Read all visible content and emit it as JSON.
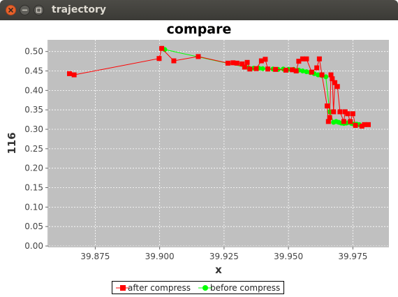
{
  "window": {
    "title": "trajectory"
  },
  "chart_data": {
    "type": "line",
    "title": "compare",
    "xlabel": "x",
    "ylabel": "116",
    "xlim": [
      39.857,
      39.989
    ],
    "ylim": [
      0.0,
      0.53
    ],
    "xticks": [
      39.875,
      39.9,
      39.925,
      39.95,
      39.975
    ],
    "xtick_labels": [
      "39.875",
      "39.900",
      "39.925",
      "39.950",
      "39.975"
    ],
    "yticks": [
      0.0,
      0.05,
      0.1,
      0.15,
      0.2,
      0.25,
      0.3,
      0.35,
      0.4,
      0.45,
      0.5
    ],
    "ytick_labels": [
      "0.00",
      "0.05",
      "0.10",
      "0.15",
      "0.20",
      "0.25",
      "0.30",
      "0.35",
      "0.40",
      "0.45",
      "0.50"
    ],
    "grid": true,
    "legend_position": "bottom-center",
    "background_color": "#c0c0c0",
    "series": [
      {
        "name": "after compress",
        "color": "#ff0000",
        "marker": "square",
        "x": [
          39.865,
          39.8668,
          39.8998,
          39.9008,
          39.9055,
          39.915,
          39.9265,
          39.9285,
          39.93,
          39.932,
          39.933,
          39.934,
          39.935,
          39.9375,
          39.9395,
          39.941,
          39.942,
          39.945,
          39.949,
          39.9515,
          39.953,
          39.954,
          39.9555,
          39.957,
          39.959,
          39.961,
          39.962,
          39.963,
          39.965,
          39.9655,
          39.966,
          39.9665,
          39.967,
          39.9675,
          39.968,
          39.969,
          39.97,
          39.9715,
          39.972,
          39.973,
          39.974,
          39.975,
          39.976,
          39.9785,
          39.9795,
          39.981
        ],
        "y": [
          0.443,
          0.44,
          0.482,
          0.508,
          0.476,
          0.487,
          0.47,
          0.471,
          0.47,
          0.468,
          0.46,
          0.472,
          0.455,
          0.456,
          0.476,
          0.48,
          0.455,
          0.454,
          0.452,
          0.453,
          0.45,
          0.475,
          0.481,
          0.481,
          0.447,
          0.458,
          0.481,
          0.44,
          0.36,
          0.32,
          0.33,
          0.44,
          0.43,
          0.345,
          0.42,
          0.41,
          0.345,
          0.32,
          0.345,
          0.34,
          0.32,
          0.34,
          0.31,
          0.308,
          0.312,
          0.312
        ]
      },
      {
        "name": "before compress",
        "color": "#00ff00",
        "marker": "circle",
        "x": [
          39.9008,
          39.902,
          39.9345,
          39.9365,
          39.9385,
          39.94,
          39.942,
          39.944,
          39.946,
          39.948,
          39.95,
          39.952,
          39.954,
          39.9555,
          39.957,
          39.9585,
          39.96,
          39.9615,
          39.963,
          39.9645,
          39.966,
          39.9675,
          39.9685,
          39.9695,
          39.9705,
          39.9715,
          39.9725,
          39.9735,
          39.9745,
          39.9755,
          39.9765,
          39.9775
        ],
        "y": [
          0.508,
          0.505,
          0.458,
          0.457,
          0.457,
          0.456,
          0.455,
          0.455,
          0.454,
          0.455,
          0.454,
          0.454,
          0.452,
          0.45,
          0.448,
          0.446,
          0.443,
          0.44,
          0.438,
          0.435,
          0.345,
          0.318,
          0.32,
          0.318,
          0.316,
          0.315,
          0.316,
          0.318,
          0.315,
          0.313,
          0.313,
          0.312
        ]
      }
    ]
  }
}
